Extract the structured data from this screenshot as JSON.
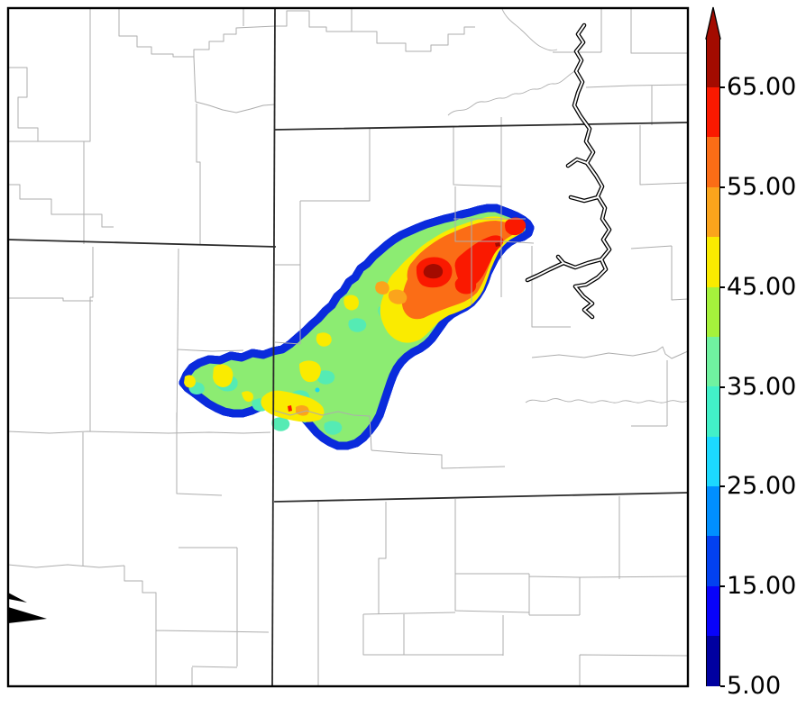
{
  "figure": {
    "kind": "radar-reflectivity-county-map",
    "background_color": "#FFFFFF"
  },
  "colorbar": {
    "orientation": "vertical",
    "range": {
      "min": 5,
      "max": 70
    },
    "ticks": [
      {
        "value": 65,
        "label": "65.00"
      },
      {
        "value": 55,
        "label": "55.00"
      },
      {
        "value": 45,
        "label": "45.00"
      },
      {
        "value": 35,
        "label": "35.00"
      },
      {
        "value": 25,
        "label": "25.00"
      },
      {
        "value": 15,
        "label": "15.00"
      },
      {
        "value": 5,
        "label": "5.00"
      }
    ],
    "segments": [
      {
        "from": 5,
        "to": 10,
        "color": "#0000A0"
      },
      {
        "from": 10,
        "to": 15,
        "color": "#0803FA"
      },
      {
        "from": 15,
        "to": 20,
        "color": "#0241F0"
      },
      {
        "from": 20,
        "to": 25,
        "color": "#008FFF"
      },
      {
        "from": 25,
        "to": 30,
        "color": "#1CD9FF"
      },
      {
        "from": 30,
        "to": 35,
        "color": "#42F0C8"
      },
      {
        "from": 35,
        "to": 40,
        "color": "#70F2A0"
      },
      {
        "from": 40,
        "to": 45,
        "color": "#A5F23C"
      },
      {
        "from": 45,
        "to": 50,
        "color": "#FAEB00"
      },
      {
        "from": 50,
        "to": 55,
        "color": "#FBA41C"
      },
      {
        "from": 55,
        "to": 60,
        "color": "#FB6D16"
      },
      {
        "from": 60,
        "to": 65,
        "color": "#FA1900"
      },
      {
        "from": 65,
        "to": 70,
        "color": "#A30B00"
      }
    ],
    "overflow_arrow_color": "#A30B00",
    "outline_color": "#000000"
  },
  "map": {
    "background_color": "#FFFFFF",
    "county_line_color": "#ADADAD",
    "state_line_color": "#2A2A2A",
    "river_outline_color": "#000000",
    "river_fill_color": "#FFFFFF",
    "border_color": "#000000",
    "storm": {
      "base_color": "#8CEC72",
      "rim_colors": [
        "#0A2BDC",
        "#078CFF",
        "#00D5E8"
      ],
      "palette": {
        "teal": "#55EBB4",
        "cyan": "#19D8F0",
        "yellow": "#FAEB00",
        "orange": "#FBA41C",
        "orange_deep": "#FB6D16",
        "red": "#FA1900",
        "dark_red": "#A30B00"
      }
    }
  }
}
